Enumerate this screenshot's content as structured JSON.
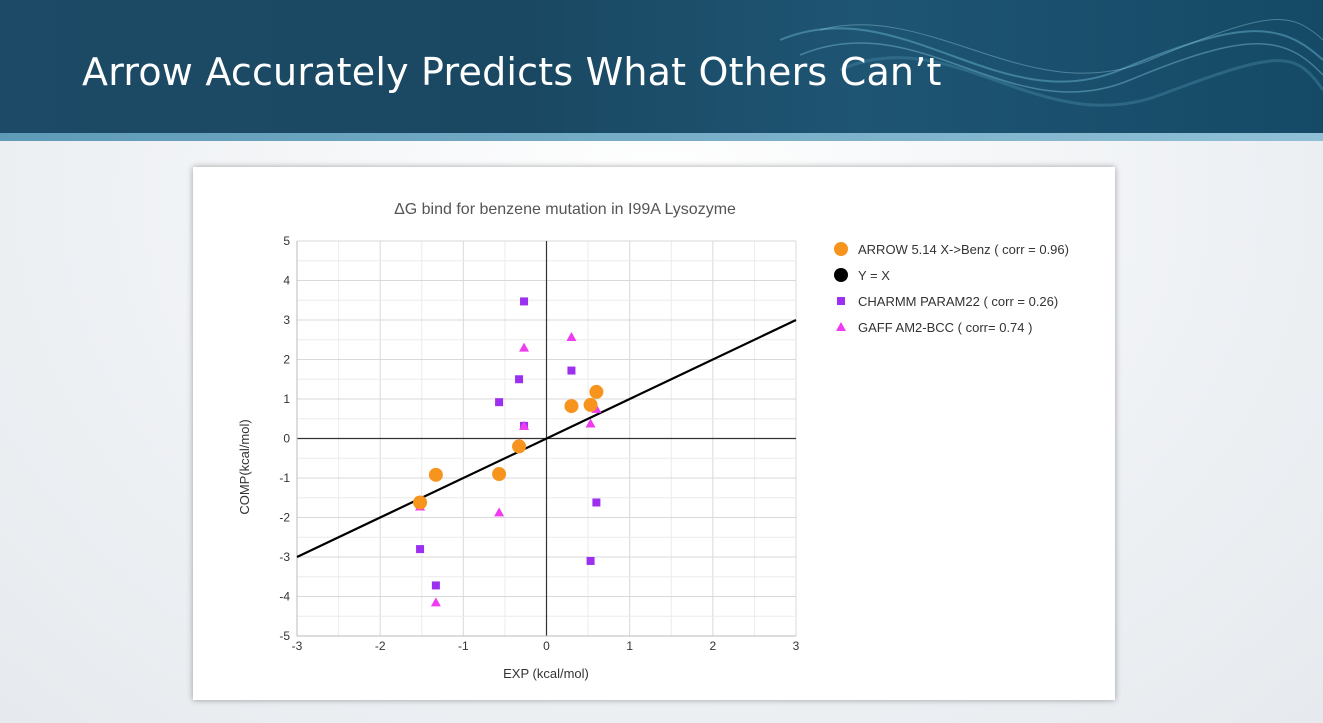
{
  "slide": {
    "title": "Arrow Accurately Predicts What Others Can’t"
  },
  "colors": {
    "header_bg": "#1c4a65",
    "arrow": "#f7941d",
    "yx": "#000000",
    "charmm": "#9b30f0",
    "gaff": "#f03cf0"
  },
  "chart_data": {
    "type": "scatter",
    "title": "ΔG bind for benzene mutation in I99A Lysozyme",
    "xlabel": "EXP (kcal/mol)",
    "ylabel": "COMP(kcal/mol)",
    "xlim": [
      -3,
      3
    ],
    "ylim": [
      -5,
      5
    ],
    "xticks": [
      "-3",
      "-2",
      "-1",
      "0",
      "1",
      "2",
      "3"
    ],
    "yticks": [
      "-5",
      "-4",
      "-3",
      "-2",
      "-1",
      "0",
      "1",
      "2",
      "3",
      "4",
      "5"
    ],
    "legend_position": "right",
    "grid": true,
    "series": [
      {
        "name": "ARROW 5.14 X->Benz ( corr = 0.96)",
        "marker": "circle",
        "color": "#f7941d",
        "points": [
          [
            -1.52,
            -1.62
          ],
          [
            -1.33,
            -0.92
          ],
          [
            -0.57,
            -0.9
          ],
          [
            -0.33,
            -0.2
          ],
          [
            0.3,
            0.82
          ],
          [
            0.53,
            0.85
          ],
          [
            0.6,
            1.18
          ]
        ]
      },
      {
        "name": "Y = X",
        "marker": "line",
        "color": "#000000",
        "points": [
          [
            -3,
            -3
          ],
          [
            3,
            3
          ]
        ]
      },
      {
        "name": "CHARMM PARAM22 ( corr = 0.26)",
        "marker": "square",
        "color": "#9b30f0",
        "points": [
          [
            -0.27,
            3.47
          ],
          [
            -0.33,
            1.5
          ],
          [
            -0.57,
            0.92
          ],
          [
            -0.27,
            0.32
          ],
          [
            0.3,
            1.72
          ],
          [
            -1.52,
            -2.8
          ],
          [
            -1.33,
            -3.72
          ],
          [
            0.53,
            -3.1
          ],
          [
            0.6,
            -1.62
          ]
        ]
      },
      {
        "name": "GAFF AM2-BCC ( corr= 0.74 )",
        "marker": "triangle",
        "color": "#f03cf0",
        "points": [
          [
            0.3,
            2.57
          ],
          [
            -0.27,
            2.3
          ],
          [
            -0.27,
            0.32
          ],
          [
            0.6,
            0.75
          ],
          [
            0.53,
            0.38
          ],
          [
            -0.33,
            -0.12
          ],
          [
            -1.52,
            -1.72
          ],
          [
            -0.57,
            -1.87
          ],
          [
            -1.33,
            -4.15
          ]
        ]
      }
    ]
  }
}
